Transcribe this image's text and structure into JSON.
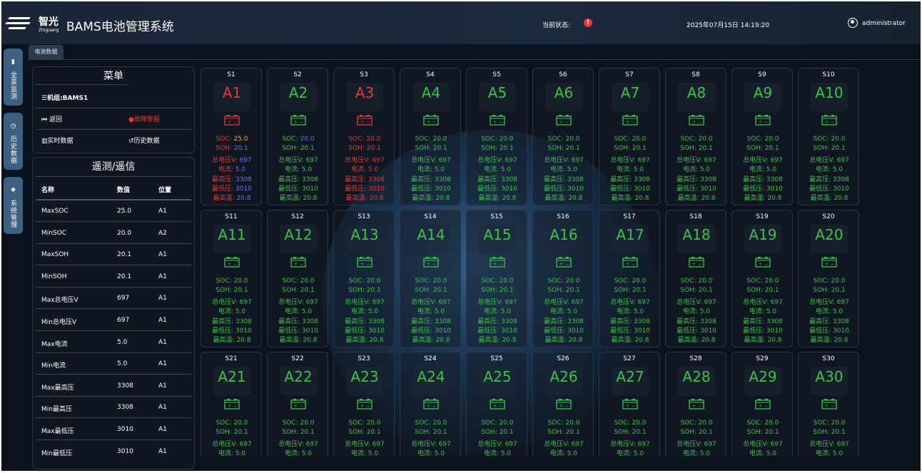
{
  "header": {
    "brand_cn": "智光",
    "brand_en": "Zhiguang",
    "title": "BAMS电池管理系统",
    "status_label": "当前状态:",
    "status_icon": "alert-circle-icon",
    "datetime": "2025年07月15日 14:19:20",
    "user": "administrator"
  },
  "nav": [
    {
      "icon": "monitor-icon",
      "label": "全景监测"
    },
    {
      "icon": "clock-icon",
      "label": "历史数据"
    },
    {
      "icon": "gear-icon",
      "label": "系统管理"
    }
  ],
  "tab": "电池数据",
  "menu": {
    "title": "菜单",
    "unit": "机组:BAMS1",
    "back": "返回",
    "fault": "故障警报",
    "realtime": "实时数据",
    "history": "历史数据"
  },
  "telemetry": {
    "title": "遥测/遥信",
    "headers": [
      "名称",
      "数值",
      "位置"
    ],
    "rows": [
      [
        "MaxSOC",
        "25.0",
        "A1"
      ],
      [
        "MinSOC",
        "20.0",
        "A2"
      ],
      [
        "MaxSOH",
        "20.1",
        "A1"
      ],
      [
        "MinSOH",
        "20.1",
        "A1"
      ],
      [
        "Max总电压V",
        "697",
        "A1"
      ],
      [
        "Min总电压V",
        "697",
        "A1"
      ],
      [
        "Max电流",
        "5.0",
        "A1"
      ],
      [
        "Min电流",
        "5.0",
        "A1"
      ],
      [
        "Max最高压",
        "3308",
        "A1"
      ],
      [
        "Min最高压",
        "3308",
        "A1"
      ],
      [
        "Max最低压",
        "3010",
        "A1"
      ],
      [
        "Min最低压",
        "3010",
        "A1"
      ]
    ]
  },
  "colors": {
    "red": "#e53935",
    "green": "#3cc24a",
    "blue": "#6a6ff0",
    "orange": "#e8b04a"
  },
  "field_labels": [
    "SOC",
    "SOH",
    "总电压V",
    "电流",
    "最高压",
    "最低压",
    "最高温"
  ],
  "default_values": [
    "20.0",
    "20.1",
    "697",
    "5.0",
    "3308",
    "3010",
    "20.8"
  ],
  "cards": [
    {
      "sid": "S1",
      "name": "A1",
      "status": "fault",
      "name_color": "red",
      "label_color": "red",
      "value_colors": [
        "orange",
        "blue",
        "blue",
        "blue",
        "blue",
        "blue",
        "blue"
      ],
      "values": [
        "25.0",
        "20.1",
        "697",
        "5.0",
        "3308",
        "3010",
        "20.8"
      ]
    },
    {
      "sid": "S2",
      "name": "A2",
      "status": "normal",
      "name_color": "green",
      "label_color": "green",
      "value_colors": [
        "blue",
        "green",
        "green",
        "green",
        "green",
        "green",
        "green"
      ]
    },
    {
      "sid": "S3",
      "name": "A3",
      "status": "fault",
      "name_color": "red",
      "label_color": "red",
      "value_colors": [
        "red",
        "red",
        "red",
        "red",
        "red",
        "red",
        "red"
      ]
    },
    {
      "sid": "S4",
      "name": "A4"
    },
    {
      "sid": "S5",
      "name": "A5"
    },
    {
      "sid": "S6",
      "name": "A6"
    },
    {
      "sid": "S7",
      "name": "A7"
    },
    {
      "sid": "S8",
      "name": "A8"
    },
    {
      "sid": "S9",
      "name": "A9"
    },
    {
      "sid": "S10",
      "name": "A10"
    },
    {
      "sid": "S11",
      "name": "A11"
    },
    {
      "sid": "S12",
      "name": "A12"
    },
    {
      "sid": "S13",
      "name": "A13"
    },
    {
      "sid": "S14",
      "name": "A14"
    },
    {
      "sid": "S15",
      "name": "A15"
    },
    {
      "sid": "S16",
      "name": "A16"
    },
    {
      "sid": "S17",
      "name": "A17"
    },
    {
      "sid": "S18",
      "name": "A18"
    },
    {
      "sid": "S19",
      "name": "A19"
    },
    {
      "sid": "S20",
      "name": "A20"
    },
    {
      "sid": "S21",
      "name": "A21"
    },
    {
      "sid": "S22",
      "name": "A22"
    },
    {
      "sid": "S23",
      "name": "A23"
    },
    {
      "sid": "S24",
      "name": "A24"
    },
    {
      "sid": "S25",
      "name": "A25"
    },
    {
      "sid": "S26",
      "name": "A26"
    },
    {
      "sid": "S27",
      "name": "A27"
    },
    {
      "sid": "S28",
      "name": "A28"
    },
    {
      "sid": "S29",
      "name": "A29"
    },
    {
      "sid": "S30",
      "name": "A30"
    }
  ]
}
